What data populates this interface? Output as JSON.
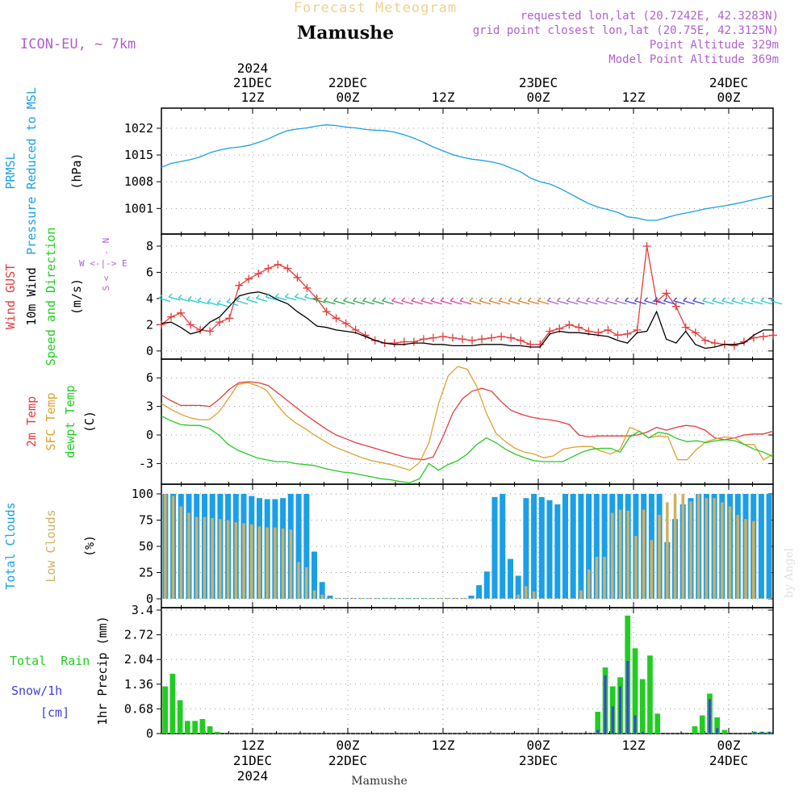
{
  "header": {
    "app_title": "Forecast Meteogram",
    "location": "Mamushe",
    "model": "ICON-EU, ~ 7km",
    "requested": "requested lon,lat (20.7242E, 42.3283N)",
    "grid_point": "grid point closest lon,lat (20.75E, 42.3125N)",
    "point_altitude": "Point Altitude 329m",
    "model_altitude": "Model Point Altitude 369m",
    "footer_location": "Mamushe",
    "watermark": "by Angel"
  },
  "colors": {
    "blue": "#1a9fe8",
    "red": "#e63c3c",
    "orange": "#e0a030",
    "green": "#22cc22",
    "tan": "#d0b060",
    "purple": "#b060d0",
    "navy": "#4040e0",
    "black": "#000000",
    "title_tan": "#f0d090"
  },
  "time_axis": {
    "hours_total": 64,
    "top_labels": [
      {
        "hour": 0,
        "lines": [
          "2024",
          "21DEC",
          "12Z"
        ]
      },
      {
        "hour": 12,
        "lines": [
          "22DEC",
          "00Z"
        ]
      },
      {
        "hour": 24,
        "lines": [
          "12Z"
        ]
      },
      {
        "hour": 36,
        "lines": [
          "23DEC",
          "00Z"
        ]
      },
      {
        "hour": 48,
        "lines": [
          "12Z"
        ]
      },
      {
        "hour": 60,
        "lines": [
          "24DEC",
          "00Z"
        ]
      }
    ],
    "bottom_labels": [
      {
        "hour": 0,
        "lines": [
          "12Z",
          "21DEC",
          "2024"
        ]
      },
      {
        "hour": 12,
        "lines": [
          "00Z",
          "22DEC"
        ]
      },
      {
        "hour": 24,
        "lines": [
          "12Z"
        ]
      },
      {
        "hour": 36,
        "lines": [
          "00Z",
          "23DEC"
        ]
      },
      {
        "hour": 48,
        "lines": [
          "12Z"
        ]
      },
      {
        "hour": 60,
        "lines": [
          "00Z",
          "24DEC"
        ]
      }
    ]
  },
  "chart_data": [
    {
      "id": "pressure",
      "type": "line",
      "ylabel_lines": [
        {
          "text": "PRMSL",
          "color": "blue"
        },
        {
          "text": "Pressure Reduced to MSL",
          "color": "blue"
        },
        {
          "text": "(hPa)",
          "color": "black"
        }
      ],
      "ylim": [
        996,
        1026
      ],
      "yticks": [
        1001,
        1008,
        1015,
        1022
      ],
      "series": [
        {
          "name": "PRMSL",
          "color": "blue",
          "values": [
            1011.8,
            1012.8,
            1013.3,
            1013.8,
            1014.5,
            1015.6,
            1016.3,
            1016.8,
            1017.1,
            1017.5,
            1018.3,
            1019.2,
            1020.4,
            1021.4,
            1021.8,
            1022.1,
            1022.6,
            1022.9,
            1022.7,
            1022.3,
            1022.1,
            1021.7,
            1021.5,
            1021.4,
            1021.0,
            1020.3,
            1019.4,
            1018.3,
            1017.1,
            1016.1,
            1015.1,
            1014.4,
            1013.9,
            1013.6,
            1013.2,
            1012.6,
            1011.6,
            1010.6,
            1009.0,
            1008.0,
            1007.4,
            1006.3,
            1005.0,
            1003.6,
            1002.3,
            1001.3,
            1000.7,
            1000.0,
            998.8,
            998.5,
            997.9,
            997.9,
            998.6,
            999.3,
            999.8,
            1000.3,
            1000.9,
            1001.3,
            1001.7,
            1002.2,
            1002.7,
            1003.3,
            1003.9,
            1004.4
          ]
        }
      ]
    },
    {
      "id": "wind",
      "type": "line",
      "ylabel_lines": [
        {
          "text": "Wind GUST",
          "color": "red"
        },
        {
          "text": "10m Wind",
          "color": "black"
        },
        {
          "text": "Speed and Direction",
          "color": "green"
        },
        {
          "text": "(m/s)",
          "color": "black"
        }
      ],
      "compass": "N, W <-|-> E, S",
      "ylim": [
        -0.5,
        8.8
      ],
      "yticks": [
        0,
        2,
        4,
        6,
        8
      ],
      "series": [
        {
          "name": "Wind GUST",
          "color": "red",
          "marker": "+",
          "values": [
            2.0,
            2.6,
            2.9,
            2.0,
            1.6,
            1.5,
            2.2,
            2.5,
            5.0,
            5.5,
            5.9,
            6.3,
            6.6,
            6.3,
            5.6,
            4.8,
            4.0,
            3.0,
            2.5,
            2.1,
            1.6,
            1.2,
            0.8,
            0.6,
            0.6,
            0.7,
            0.7,
            0.9,
            1.0,
            1.1,
            1.0,
            0.9,
            0.8,
            0.9,
            1.0,
            1.1,
            1.0,
            0.8,
            0.5,
            0.5,
            1.5,
            1.7,
            2.0,
            1.8,
            1.5,
            1.4,
            1.6,
            1.2,
            1.3,
            1.6,
            8.0,
            3.8,
            4.4,
            3.4,
            1.8,
            1.4,
            0.8,
            0.6,
            0.5,
            0.4,
            0.7,
            1.0,
            1.1,
            1.2
          ]
        },
        {
          "name": "10m Wind",
          "color": "black",
          "values": [
            2.1,
            2.2,
            1.8,
            1.3,
            1.5,
            2.2,
            2.6,
            3.4,
            4.2,
            4.4,
            4.5,
            4.3,
            3.9,
            3.6,
            3.0,
            2.5,
            1.9,
            1.8,
            1.6,
            1.5,
            1.4,
            1.1,
            0.8,
            0.6,
            0.5,
            0.5,
            0.6,
            0.6,
            0.5,
            0.5,
            0.4,
            0.4,
            0.4,
            0.5,
            0.5,
            0.5,
            0.4,
            0.4,
            0.3,
            0.3,
            1.3,
            1.5,
            1.4,
            1.4,
            1.3,
            1.2,
            1.1,
            0.8,
            0.6,
            1.4,
            1.5,
            3.0,
            0.9,
            0.6,
            1.5,
            0.5,
            0.2,
            0.3,
            0.5,
            0.5,
            0.6,
            1.2,
            1.6,
            1.6
          ]
        },
        {
          "name": "Direction",
          "color": "arrows",
          "values": [
            3.9,
            4.0,
            3.9,
            3.8,
            3.7,
            3.6,
            3.5,
            3.6,
            3.7,
            3.8,
            3.9,
            4.0,
            4.0,
            4.0,
            4.0,
            4.0,
            3.8,
            3.7,
            3.7,
            3.7,
            3.7,
            3.7,
            3.7,
            3.7,
            3.7,
            3.7,
            3.7,
            3.7,
            3.7,
            3.7,
            3.7,
            3.7,
            3.7,
            3.7,
            3.7,
            3.7,
            3.7,
            3.7,
            3.7,
            3.7,
            3.7,
            3.7,
            3.7,
            3.7,
            3.7,
            3.7,
            3.7,
            3.7,
            3.7,
            3.7,
            3.7,
            3.7,
            3.7,
            3.7,
            3.7,
            3.7,
            3.7,
            3.7,
            3.7,
            3.7,
            3.7,
            3.7,
            3.7,
            3.7
          ]
        }
      ]
    },
    {
      "id": "temperature",
      "type": "line",
      "ylabel_lines": [
        {
          "text": "2m Temp",
          "color": "red"
        },
        {
          "text": "SFC Temp",
          "color": "orange"
        },
        {
          "text": "dewpt Temp",
          "color": "green"
        },
        {
          "text": "(C)",
          "color": "black"
        }
      ],
      "ylim": [
        -5.0,
        7.8
      ],
      "yticks": [
        -3,
        0,
        3,
        6
      ],
      "series": [
        {
          "name": "2m Temp",
          "color": "red",
          "values": [
            4.2,
            3.6,
            3.1,
            3.1,
            3.1,
            3.0,
            3.8,
            4.8,
            5.5,
            5.6,
            5.5,
            5.2,
            4.4,
            3.6,
            2.8,
            2.0,
            1.3,
            0.6,
            0.0,
            -0.4,
            -0.8,
            -1.1,
            -1.4,
            -1.7,
            -2.0,
            -2.3,
            -2.5,
            -2.6,
            -2.3,
            -0.2,
            2.3,
            3.8,
            4.6,
            4.9,
            4.6,
            3.5,
            2.6,
            2.2,
            1.9,
            1.7,
            1.6,
            1.4,
            1.1,
            0.0,
            -0.2,
            -0.1,
            -0.1,
            -0.1,
            -0.1,
            0.0,
            0.3,
            0.8,
            0.5,
            0.8,
            1.0,
            0.9,
            0.5,
            -0.3,
            -0.5,
            -0.3,
            0.0,
            0.1,
            0.1,
            0.4
          ]
        },
        {
          "name": "SFC Temp",
          "color": "orange",
          "values": [
            3.3,
            2.7,
            2.2,
            1.8,
            1.6,
            1.6,
            2.4,
            3.8,
            5.3,
            5.5,
            5.2,
            4.7,
            3.3,
            2.1,
            1.3,
            0.7,
            0.0,
            -0.6,
            -1.2,
            -1.6,
            -2.0,
            -2.4,
            -2.7,
            -2.9,
            -3.1,
            -3.4,
            -3.7,
            -2.9,
            -0.8,
            3.3,
            6.2,
            7.2,
            6.9,
            5.1,
            2.3,
            0.2,
            -0.7,
            -1.4,
            -1.8,
            -2.0,
            -2.4,
            -2.2,
            -1.5,
            -1.3,
            -1.2,
            -1.2,
            -1.7,
            -2.0,
            -1.5,
            0.8,
            0.4,
            -0.3,
            -0.1,
            -0.2,
            -2.6,
            -2.6,
            -1.5,
            -0.7,
            -0.4,
            -0.2,
            -0.3,
            -1.0,
            -1.0,
            -2.6,
            -2.0
          ]
        },
        {
          "name": "dewpt Temp",
          "color": "green",
          "values": [
            2.0,
            1.5,
            1.1,
            1.0,
            1.0,
            0.7,
            0.0,
            -1.0,
            -1.6,
            -2.0,
            -2.4,
            -2.6,
            -2.8,
            -2.8,
            -3.0,
            -3.1,
            -3.2,
            -3.5,
            -3.7,
            -3.9,
            -4.0,
            -4.2,
            -4.4,
            -4.6,
            -4.7,
            -4.9,
            -5.0,
            -4.6,
            -3.0,
            -3.7,
            -3.1,
            -2.7,
            -2.0,
            -1.0,
            -0.3,
            -0.8,
            -1.5,
            -2.0,
            -2.4,
            -2.7,
            -2.8,
            -2.8,
            -2.8,
            -2.3,
            -1.8,
            -1.5,
            -1.4,
            -1.4,
            -1.8,
            -0.2,
            0.4,
            -0.3,
            0.3,
            0.1,
            -0.4,
            -0.7,
            -0.6,
            -0.8,
            -0.6,
            -0.5,
            -0.6,
            -1.0,
            -1.5,
            -1.8,
            -2.3
          ]
        }
      ]
    },
    {
      "id": "clouds",
      "type": "bar",
      "ylabel_lines": [
        {
          "text": "Total Clouds",
          "color": "blue"
        },
        {
          "text": "Low Clouds",
          "color": "tan"
        },
        {
          "text": "(%)",
          "color": "black"
        }
      ],
      "ylim": [
        0,
        100
      ],
      "yticks": [
        0,
        25,
        50,
        75,
        100
      ],
      "series": [
        {
          "name": "Total Clouds",
          "color": "blue",
          "values": [
            100,
            100,
            100,
            100,
            100,
            100,
            100,
            100,
            100,
            100,
            100,
            98,
            96,
            95,
            95,
            96,
            100,
            100,
            100,
            45,
            16,
            3,
            0,
            0,
            0,
            0,
            0,
            0,
            0,
            0,
            0,
            0,
            0,
            0,
            0,
            0,
            0,
            0,
            0,
            3,
            13,
            26,
            97,
            100,
            38,
            22,
            96,
            100,
            97,
            94,
            90,
            100,
            100,
            100,
            100,
            100,
            100,
            100,
            100,
            100,
            100,
            100,
            100,
            100,
            54,
            76,
            90,
            96,
            100,
            100,
            100,
            100,
            100,
            100,
            100,
            100,
            100,
            100
          ]
        },
        {
          "name": "Low Clouds",
          "color": "tan",
          "values": [
            100,
            98,
            88,
            82,
            78,
            78,
            77,
            76,
            75,
            73,
            72,
            71,
            69,
            68,
            68,
            67,
            66,
            35,
            30,
            8,
            4,
            0,
            0,
            0,
            0,
            0,
            0,
            0,
            0,
            0,
            0,
            0,
            0,
            0,
            0,
            0,
            0,
            0,
            0,
            0,
            0,
            0,
            0,
            0,
            0,
            4,
            12,
            7,
            0,
            0,
            0,
            0,
            0,
            8,
            28,
            40,
            40,
            82,
            85,
            84,
            60,
            85,
            56,
            80,
            92,
            100,
            100,
            93,
            100,
            96,
            96,
            92,
            88,
            80,
            76,
            74,
            0,
            0
          ]
        }
      ]
    },
    {
      "id": "precip",
      "type": "bar",
      "ylabel_lines": [
        {
          "text": "1hr Precip (mm)",
          "color": "black"
        }
      ],
      "side_legend": {
        "total_rain": "Total  Rain",
        "snow": "Snow/1h",
        "snow_unit": "[cm]"
      },
      "ylim": [
        0,
        3.4
      ],
      "yticks": [
        0,
        0.68,
        1.36,
        2.04,
        2.72,
        3.4
      ],
      "ytick_labels": [
        "0",
        "0.68",
        "1.36",
        "2.04",
        "2.72",
        "3.4"
      ],
      "series": [
        {
          "name": "Total Rain",
          "color": "green",
          "values": [
            1.3,
            1.65,
            0.92,
            0.35,
            0.35,
            0.4,
            0.2,
            0.05,
            0,
            0,
            0,
            0,
            0,
            0,
            0,
            0,
            0,
            0,
            0,
            0,
            0,
            0,
            0,
            0,
            0,
            0,
            0,
            0,
            0,
            0,
            0,
            0,
            0,
            0,
            0,
            0,
            0,
            0,
            0,
            0,
            0,
            0,
            0,
            0,
            0,
            0,
            0,
            0,
            0,
            0,
            0,
            0,
            0,
            0,
            0,
            0,
            0,
            0,
            0.6,
            1.82,
            1.3,
            1.55,
            3.25,
            2.35,
            1.5,
            2.15,
            0.55,
            0,
            0,
            0,
            0,
            0.2,
            0.5,
            1.1,
            0.45,
            0.1,
            0,
            0,
            0,
            0.05,
            0.05,
            0.05
          ]
        },
        {
          "name": "Snow/1h",
          "color": "navy",
          "values": [
            0,
            0,
            0,
            0,
            0,
            0,
            0,
            0,
            0,
            0,
            0,
            0,
            0,
            0,
            0,
            0,
            0,
            0,
            0,
            0,
            0,
            0,
            0,
            0,
            0,
            0,
            0,
            0,
            0,
            0,
            0,
            0,
            0,
            0,
            0,
            0,
            0,
            0,
            0,
            0,
            0,
            0,
            0,
            0,
            0,
            0,
            0,
            0,
            0,
            0,
            0,
            0,
            0,
            0,
            0,
            0,
            0,
            0,
            0.1,
            1.6,
            0.75,
            1.3,
            2.0,
            0.5,
            0.05,
            0,
            0,
            0,
            0,
            0,
            0,
            0,
            0,
            0.95,
            0.15,
            0,
            0,
            0,
            0,
            0.05,
            0.05,
            0.05
          ]
        }
      ]
    }
  ]
}
